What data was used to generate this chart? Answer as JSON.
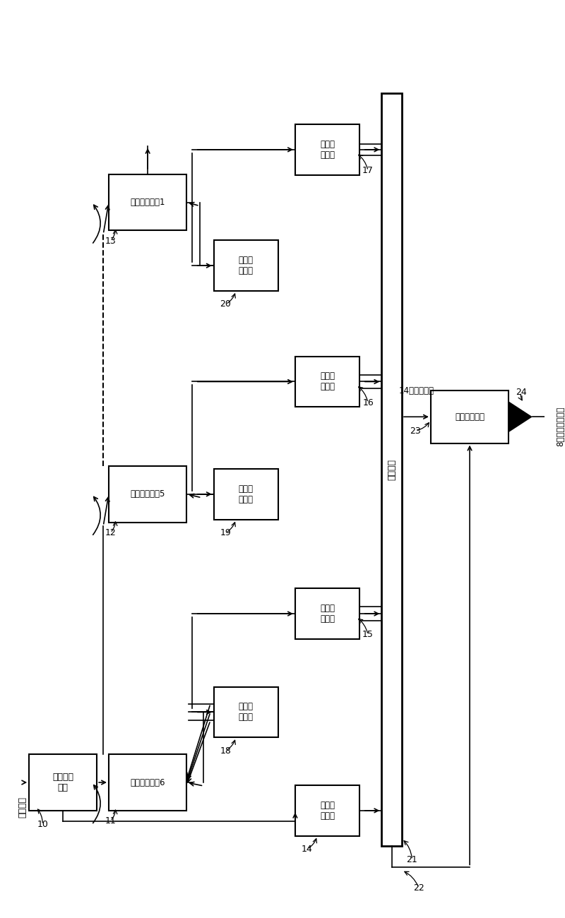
{
  "bg_color": "#ffffff",
  "figsize": [
    8.0,
    13.0
  ],
  "dpi": 100,
  "blocks": {
    "sample_hold": {
      "label": "采样保持\n电路",
      "id": "10"
    },
    "residue6": {
      "label": "余量增益电路6",
      "id": "11"
    },
    "residue5": {
      "label": "余量增益电路5",
      "id": "12"
    },
    "residue1": {
      "label": "余量增益电路1",
      "id": "13"
    },
    "adc14": {
      "label": "子模数\n转换器",
      "id": "14"
    },
    "dac18": {
      "label": "子数模\n转换器",
      "id": "18"
    },
    "adc15": {
      "label": "子模数\n转换器",
      "id": "15"
    },
    "dac19": {
      "label": "子数模\n转换器",
      "id": "19"
    },
    "adc16": {
      "label": "子模数\n转换器",
      "id": "16"
    },
    "dac20": {
      "label": "子数模\n转换器",
      "id": "20"
    },
    "adc17": {
      "label": "子模数\n转换器",
      "id": "17"
    },
    "sync": {
      "label": "同步电路",
      "id": "sync"
    },
    "dcorr": {
      "label": "数字校正电路",
      "id": "23_24"
    }
  },
  "text": {
    "analog_in": "模拟输入",
    "8bit_out": "8位量化数字输出",
    "sync_data": "14位同步数据",
    "tongbu": "同步电路"
  },
  "numbers": [
    "10",
    "11",
    "12",
    "13",
    "14",
    "15",
    "16",
    "17",
    "18",
    "19",
    "20",
    "21",
    "22",
    "23",
    "24"
  ]
}
